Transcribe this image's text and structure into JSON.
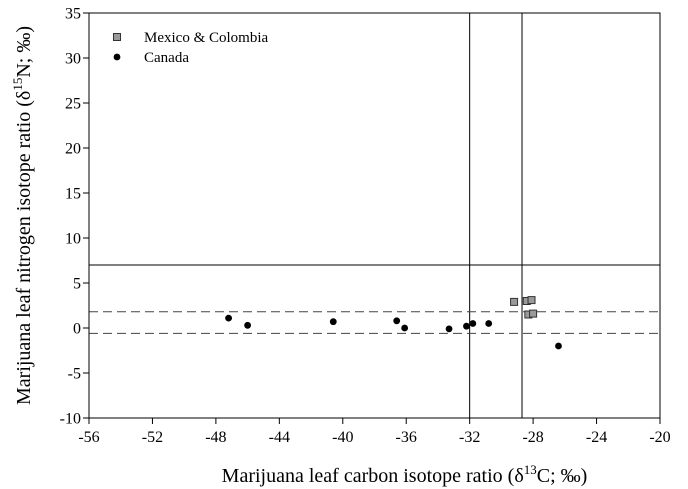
{
  "chart_data": {
    "type": "scatter",
    "title": "",
    "xlabel": {
      "main": "Marijuana leaf carbon isotope ratio (δ",
      "sup": "13",
      "tail": "C; ‰)"
    },
    "ylabel": {
      "main": "Marijuana leaf nitrogen isotope ratio (δ",
      "sup": "15",
      "tail": "N; ‰)"
    },
    "xlim": [
      -56,
      -20
    ],
    "ylim": [
      -10,
      35
    ],
    "xticks": [
      "-56",
      "-52",
      "-48",
      "-44",
      "-40",
      "-36",
      "-32",
      "-28",
      "-24",
      "-20"
    ],
    "yticks": [
      "-10",
      "-5",
      "0",
      "5",
      "10",
      "15",
      "20",
      "25",
      "30",
      "35"
    ],
    "grid": false,
    "legend_position": "top-left",
    "reference_lines": {
      "solid_vertical_x": [
        -32.0,
        -28.7
      ],
      "solid_horizontal_y": [
        7.0
      ],
      "dashed_horizontal_y": [
        1.8,
        -0.6
      ]
    },
    "series": [
      {
        "name": "Mexico & Colombia",
        "marker": "square",
        "color": "#9a9a9a",
        "points": [
          {
            "x": -29.2,
            "y": 2.9
          },
          {
            "x": -28.4,
            "y": 3.0
          },
          {
            "x": -28.1,
            "y": 3.1
          },
          {
            "x": -28.3,
            "y": 1.5
          },
          {
            "x": -28.0,
            "y": 1.6
          }
        ]
      },
      {
        "name": "Canada",
        "marker": "circle",
        "color": "#000000",
        "points": [
          {
            "x": -47.2,
            "y": 1.1
          },
          {
            "x": -46.0,
            "y": 0.3
          },
          {
            "x": -40.6,
            "y": 0.7
          },
          {
            "x": -36.6,
            "y": 0.8
          },
          {
            "x": -36.1,
            "y": 0.0
          },
          {
            "x": -33.3,
            "y": -0.1
          },
          {
            "x": -32.2,
            "y": 0.2
          },
          {
            "x": -31.8,
            "y": 0.5
          },
          {
            "x": -30.8,
            "y": 0.5
          },
          {
            "x": -26.4,
            "y": -2.0
          }
        ]
      }
    ]
  }
}
